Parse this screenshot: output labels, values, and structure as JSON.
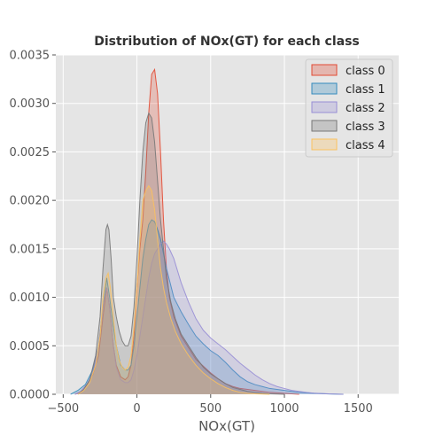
{
  "chart_data": {
    "type": "area",
    "title": "Distribution of NOx(GT) for each class",
    "xlabel": "NOx(GT)",
    "ylabel": "",
    "xlim": [
      -550,
      1775
    ],
    "ylim": [
      0,
      0.0035
    ],
    "xticks": [
      -500,
      0,
      500,
      1000,
      1500
    ],
    "xtick_labels": [
      "−500",
      "0",
      "500",
      "1000",
      "1500"
    ],
    "yticks": [
      0,
      0.0005,
      0.001,
      0.0015,
      0.002,
      0.0025,
      0.003,
      0.0035
    ],
    "ytick_labels": [
      "0.0000",
      "0.0005",
      "0.0010",
      "0.0015",
      "0.0020",
      "0.0025",
      "0.0030",
      "0.0035"
    ],
    "grid": true,
    "legend_position": "top-right",
    "series": [
      {
        "name": "class 0",
        "color": "#e24a33",
        "x": [
          -420,
          -380,
          -340,
          -300,
          -260,
          -230,
          -205,
          -185,
          -160,
          -140,
          -110,
          -80,
          -60,
          -40,
          -20,
          0,
          20,
          40,
          60,
          80,
          100,
          120,
          140,
          160,
          180,
          200,
          220,
          250,
          300,
          350,
          400,
          450,
          500,
          550,
          600,
          650,
          700,
          750,
          800,
          850,
          900,
          950,
          1000,
          1050,
          1100
        ],
        "y": [
          0,
          3e-05,
          0.0001,
          0.0002,
          0.0004,
          0.0008,
          0.0011,
          0.0009,
          0.0005,
          0.0003,
          0.00018,
          0.00015,
          0.00018,
          0.0003,
          0.0006,
          0.0011,
          0.0015,
          0.0018,
          0.0023,
          0.0029,
          0.0033,
          0.00335,
          0.0031,
          0.0025,
          0.0018,
          0.0013,
          0.001,
          0.0008,
          0.0006,
          0.00048,
          0.00036,
          0.00029,
          0.00022,
          0.00016,
          0.00011,
          8e-05,
          6e-05,
          5e-05,
          4e-05,
          3e-05,
          2e-05,
          1.5e-05,
          1e-05,
          5e-06,
          0
        ]
      },
      {
        "name": "class 1",
        "color": "#348abd",
        "x": [
          -450,
          -400,
          -350,
          -300,
          -260,
          -230,
          -205,
          -185,
          -160,
          -140,
          -110,
          -80,
          -60,
          -40,
          -20,
          0,
          20,
          40,
          60,
          80,
          100,
          120,
          140,
          160,
          180,
          200,
          220,
          250,
          300,
          350,
          400,
          450,
          500,
          550,
          600,
          650,
          700,
          750,
          800,
          850,
          900,
          950,
          1000,
          1050,
          1100,
          1150,
          1200,
          1300,
          1400
        ],
        "y": [
          0,
          4e-05,
          0.0001,
          0.00025,
          0.0005,
          0.0009,
          0.0012,
          0.001,
          0.0007,
          0.0005,
          0.0003,
          0.00025,
          0.00025,
          0.0003,
          0.0005,
          0.0008,
          0.0011,
          0.0014,
          0.0016,
          0.00175,
          0.0018,
          0.00178,
          0.0017,
          0.0016,
          0.00145,
          0.0013,
          0.00118,
          0.001,
          0.00085,
          0.00072,
          0.0006,
          0.00052,
          0.00045,
          0.0004,
          0.00033,
          0.00025,
          0.00018,
          0.00013,
          0.0001,
          8e-05,
          6e-05,
          5e-05,
          4e-05,
          3e-05,
          2e-05,
          1.5e-05,
          1e-05,
          3e-06,
          0
        ]
      },
      {
        "name": "class 2",
        "color": "#988ed5",
        "x": [
          -420,
          -380,
          -340,
          -300,
          -260,
          -230,
          -205,
          -185,
          -160,
          -140,
          -110,
          -80,
          -60,
          -40,
          -20,
          0,
          20,
          40,
          60,
          80,
          100,
          120,
          140,
          160,
          180,
          200,
          220,
          250,
          300,
          350,
          400,
          450,
          500,
          550,
          600,
          650,
          700,
          750,
          800,
          850,
          900,
          950,
          1000,
          1050,
          1100,
          1150,
          1200,
          1300,
          1400
        ],
        "y": [
          0,
          3e-05,
          0.0001,
          0.00022,
          0.0005,
          0.0009,
          0.0011,
          0.0009,
          0.0005,
          0.00028,
          0.00015,
          0.00012,
          0.00012,
          0.00015,
          0.00025,
          0.0004,
          0.0006,
          0.0008,
          0.001,
          0.0012,
          0.00135,
          0.00145,
          0.0015,
          0.00155,
          0.00158,
          0.00155,
          0.0015,
          0.0014,
          0.00115,
          0.00095,
          0.00078,
          0.00066,
          0.00058,
          0.00052,
          0.00046,
          0.00039,
          0.00032,
          0.00026,
          0.0002,
          0.00015,
          0.00011,
          8e-05,
          6e-05,
          4e-05,
          3e-05,
          2e-05,
          1.2e-05,
          4e-06,
          0
        ]
      },
      {
        "name": "class 3",
        "color": "#777777",
        "x": [
          -400,
          -360,
          -320,
          -280,
          -250,
          -230,
          -210,
          -200,
          -190,
          -175,
          -160,
          -140,
          -120,
          -100,
          -80,
          -60,
          -40,
          -20,
          0,
          20,
          40,
          60,
          80,
          100,
          120,
          140,
          160,
          180,
          200,
          230,
          260,
          300,
          350,
          400,
          450,
          500,
          550,
          600,
          650,
          700,
          750,
          800,
          850,
          900,
          950,
          1000
        ],
        "y": [
          0,
          5e-05,
          0.00015,
          0.0004,
          0.0008,
          0.0013,
          0.0017,
          0.00175,
          0.0017,
          0.0014,
          0.001,
          0.0008,
          0.00065,
          0.00055,
          0.0005,
          0.0005,
          0.0006,
          0.0009,
          0.0014,
          0.002,
          0.0025,
          0.0028,
          0.0029,
          0.00285,
          0.0026,
          0.0022,
          0.0018,
          0.0015,
          0.0012,
          0.00095,
          0.00078,
          0.00062,
          0.0005,
          0.00038,
          0.00028,
          0.00021,
          0.00016,
          0.00011,
          7e-05,
          5e-05,
          3e-05,
          2e-05,
          1e-05,
          5e-06,
          2e-06,
          0
        ]
      },
      {
        "name": "class 4",
        "color": "#fbc15e",
        "x": [
          -400,
          -360,
          -320,
          -280,
          -250,
          -230,
          -210,
          -195,
          -180,
          -160,
          -140,
          -120,
          -100,
          -80,
          -60,
          -40,
          -20,
          0,
          20,
          40,
          60,
          80,
          100,
          120,
          140,
          160,
          180,
          200,
          230,
          260,
          300,
          350,
          400,
          450,
          500,
          550,
          600,
          650,
          700,
          750,
          800,
          850,
          900
        ],
        "y": [
          0,
          4e-05,
          0.00012,
          0.0003,
          0.0006,
          0.001,
          0.0012,
          0.00125,
          0.0011,
          0.0008,
          0.0005,
          0.00035,
          0.00028,
          0.00025,
          0.00028,
          0.0004,
          0.0007,
          0.0011,
          0.0016,
          0.002,
          0.0021,
          0.00215,
          0.0021,
          0.0019,
          0.0016,
          0.0013,
          0.0011,
          0.00095,
          0.00078,
          0.00065,
          0.00052,
          0.0004,
          0.0003,
          0.00022,
          0.00016,
          0.00011,
          7e-05,
          4e-05,
          2e-05,
          1e-05,
          5e-06,
          2e-06,
          0
        ]
      }
    ]
  }
}
